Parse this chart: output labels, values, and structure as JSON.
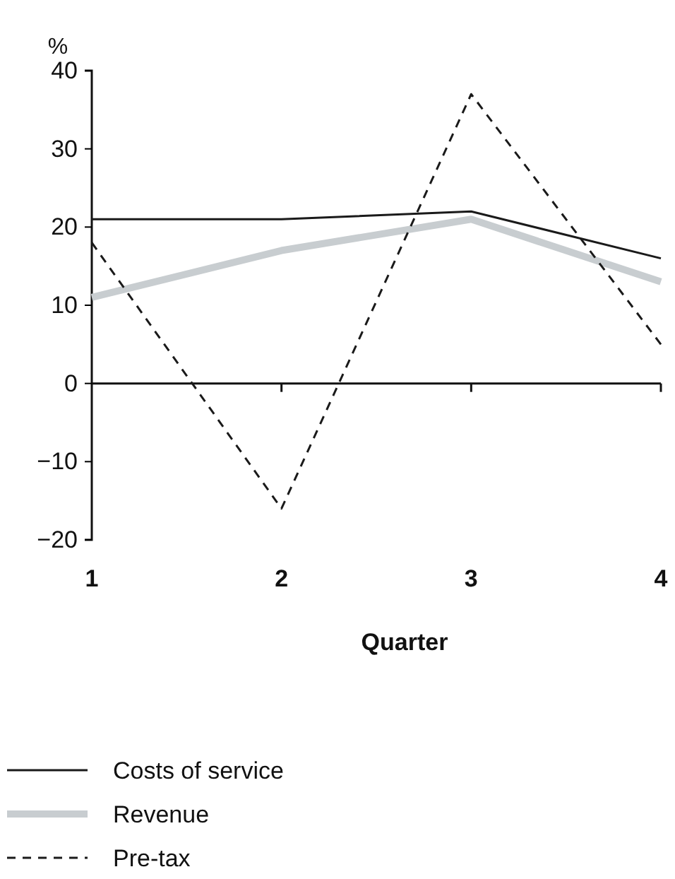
{
  "chart_data": {
    "type": "line",
    "ylabel": "%",
    "xlabel": "Quarter",
    "x": [
      1,
      2,
      3,
      4
    ],
    "xlim": [
      1,
      4
    ],
    "xticks": [
      1,
      2,
      3,
      4
    ],
    "ylim": [
      -20,
      40
    ],
    "yticks": [
      {
        "value": -20,
        "label": "−20"
      },
      {
        "value": -10,
        "label": "−10"
      },
      0,
      10,
      20,
      30,
      40
    ],
    "legend": "bottom left",
    "series": [
      {
        "name": "Costs of service",
        "color": "#1a1a1a",
        "values": [
          21,
          21,
          22,
          16
        ],
        "line_style": "solid"
      },
      {
        "name": "Revenue",
        "color": "#c8cdd0",
        "values": [
          11,
          17,
          21,
          13
        ],
        "line_style": "solid"
      },
      {
        "name": "Pre-tax",
        "color": "#1a1a1a",
        "values": [
          18,
          -16,
          37,
          5
        ],
        "line_style": "dashed"
      }
    ]
  }
}
